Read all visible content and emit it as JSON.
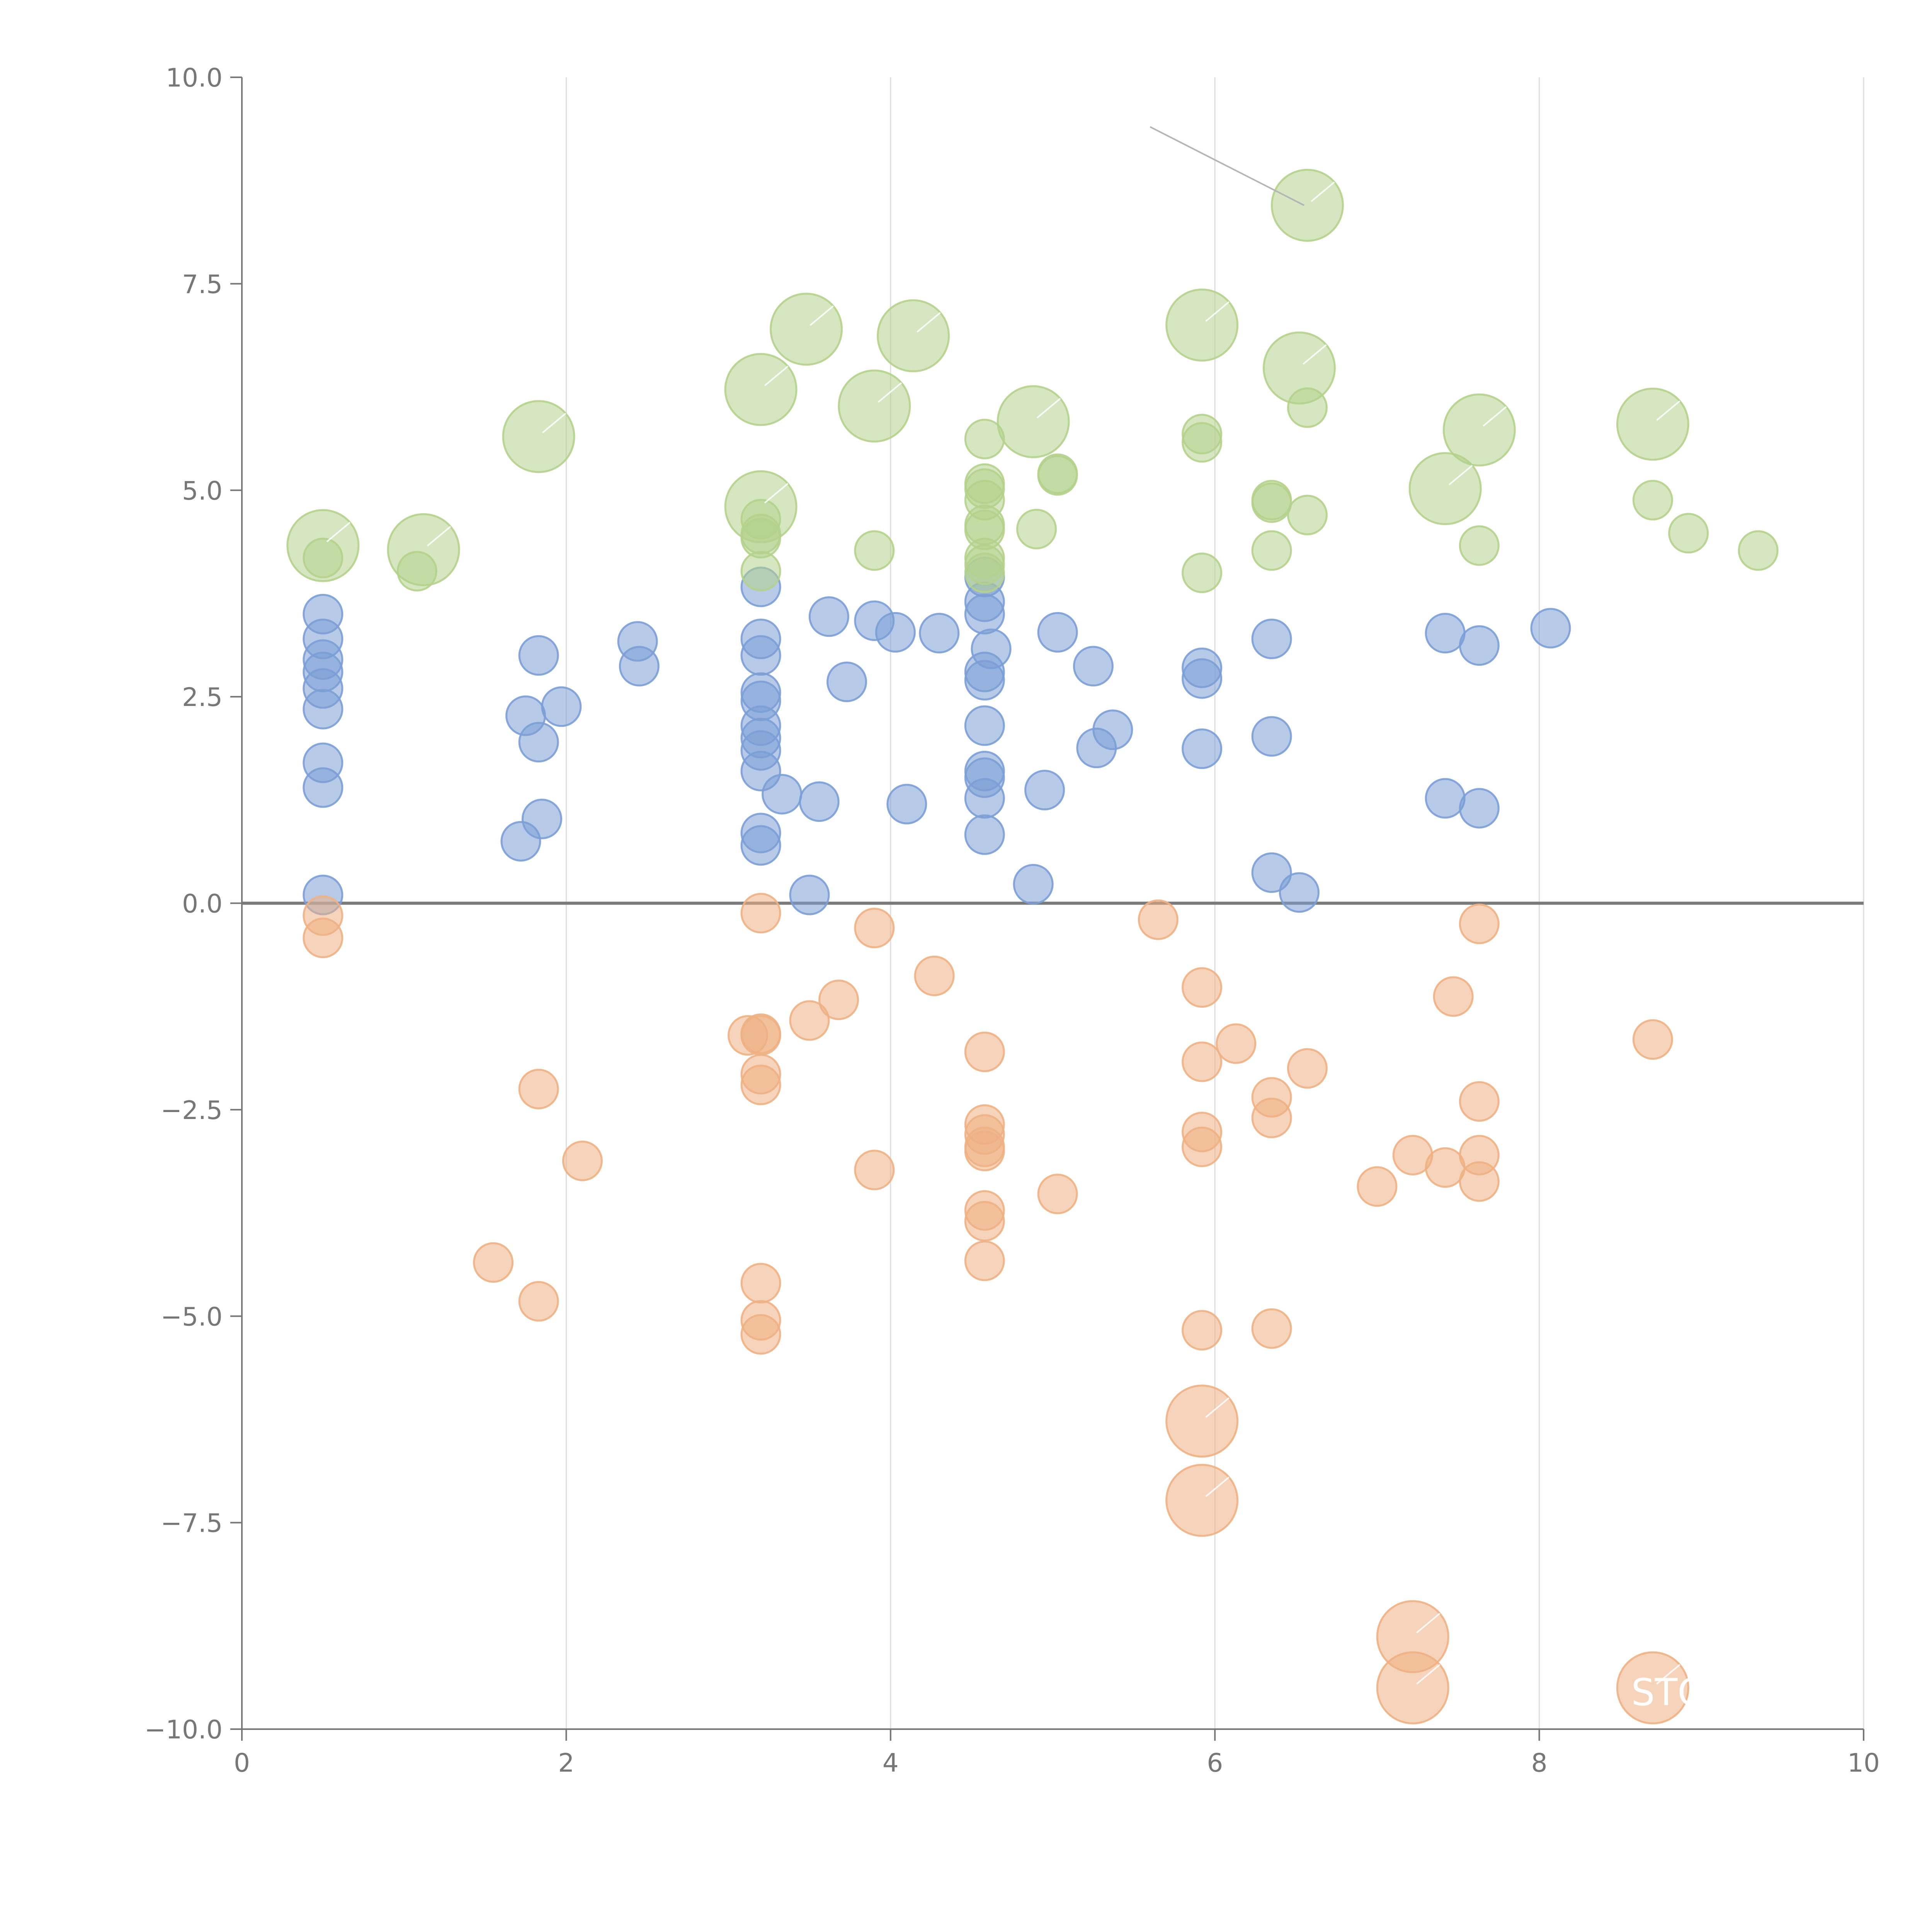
{
  "chart_data": {
    "type": "scatter",
    "title": "",
    "xlabel": "",
    "ylabel": "",
    "xlim": [
      0,
      10
    ],
    "ylim": [
      -10,
      10
    ],
    "x_ticks": [
      0,
      2,
      4,
      6,
      8,
      10
    ],
    "x_tick_labels": [
      "0",
      "2",
      "4",
      "6",
      "8",
      "10"
    ],
    "y_ticks": [
      10,
      7.5,
      5,
      2.5,
      0,
      -2.5,
      -5,
      -7.5,
      -10
    ],
    "y_tick_labels": [
      "10.0",
      "7.5",
      "5.0",
      "2.5",
      "0.0",
      "−2.5",
      "−5.0",
      "−7.5",
      "−10.0"
    ],
    "grid": "vertical",
    "zero_line": true,
    "series": [
      {
        "name": "blue",
        "color": "#7b9fd6",
        "points": [
          [
            0.5,
            3.5,
            1
          ],
          [
            0.5,
            3.2,
            1
          ],
          [
            0.5,
            2.95,
            1
          ],
          [
            0.5,
            2.8,
            1
          ],
          [
            0.5,
            2.6,
            1
          ],
          [
            0.5,
            2.35,
            1
          ],
          [
            0.5,
            1.7,
            1
          ],
          [
            0.5,
            1.4,
            1
          ],
          [
            0.5,
            0.1,
            1
          ],
          [
            1.72,
            0.75,
            1
          ],
          [
            1.75,
            2.27,
            1
          ],
          [
            1.83,
            3.0,
            1
          ],
          [
            1.83,
            1.95,
            1
          ],
          [
            1.85,
            1.02,
            1
          ],
          [
            1.97,
            2.38,
            1
          ],
          [
            2.44,
            3.17,
            1
          ],
          [
            2.45,
            2.87,
            1
          ],
          [
            3.2,
            3.83,
            1
          ],
          [
            3.2,
            3.2,
            1
          ],
          [
            3.2,
            3.0,
            1
          ],
          [
            3.2,
            2.55,
            1
          ],
          [
            3.2,
            2.45,
            1
          ],
          [
            3.2,
            2.15,
            1
          ],
          [
            3.2,
            2.0,
            1
          ],
          [
            3.2,
            1.85,
            1
          ],
          [
            3.2,
            1.6,
            1
          ],
          [
            3.2,
            0.85,
            1
          ],
          [
            3.2,
            0.7,
            1
          ],
          [
            3.33,
            1.32,
            1
          ],
          [
            3.5,
            0.1,
            1
          ],
          [
            3.56,
            1.23,
            1
          ],
          [
            3.62,
            3.47,
            1
          ],
          [
            3.73,
            2.68,
            1
          ],
          [
            3.9,
            3.42,
            1
          ],
          [
            4.03,
            3.28,
            1
          ],
          [
            4.1,
            1.2,
            1
          ],
          [
            4.3,
            3.27,
            1
          ],
          [
            4.58,
            3.95,
            1
          ],
          [
            4.58,
            3.65,
            1
          ],
          [
            4.58,
            3.5,
            1
          ],
          [
            4.58,
            2.8,
            1
          ],
          [
            4.58,
            2.7,
            1
          ],
          [
            4.58,
            2.15,
            1
          ],
          [
            4.58,
            1.6,
            1
          ],
          [
            4.58,
            1.52,
            1
          ],
          [
            4.58,
            1.27,
            1
          ],
          [
            4.58,
            0.83,
            1
          ],
          [
            4.62,
            3.08,
            1
          ],
          [
            4.88,
            0.23,
            1
          ],
          [
            4.95,
            1.37,
            1
          ],
          [
            5.03,
            3.28,
            1
          ],
          [
            5.25,
            2.87,
            1
          ],
          [
            5.27,
            1.88,
            1
          ],
          [
            5.37,
            2.1,
            1
          ],
          [
            5.92,
            2.85,
            1
          ],
          [
            5.92,
            2.72,
            1
          ],
          [
            5.92,
            1.87,
            1
          ],
          [
            6.35,
            3.2,
            1
          ],
          [
            6.35,
            2.02,
            1
          ],
          [
            6.35,
            0.37,
            1
          ],
          [
            6.52,
            0.13,
            1
          ],
          [
            7.42,
            3.27,
            1
          ],
          [
            7.42,
            1.27,
            1
          ],
          [
            7.63,
            3.12,
            1
          ],
          [
            7.63,
            1.15,
            1
          ],
          [
            8.07,
            3.33,
            1
          ]
        ]
      },
      {
        "name": "green",
        "color": "#b5d28c",
        "points": [
          [
            0.5,
            4.33,
            2
          ],
          [
            0.5,
            4.18,
            1
          ],
          [
            1.12,
            4.28,
            2
          ],
          [
            1.08,
            4.02,
            1
          ],
          [
            1.83,
            5.65,
            2
          ],
          [
            3.2,
            6.22,
            2
          ],
          [
            3.2,
            4.8,
            2
          ],
          [
            3.2,
            4.65,
            1
          ],
          [
            3.2,
            4.47,
            1
          ],
          [
            3.2,
            4.42,
            1
          ],
          [
            3.2,
            4.02,
            1
          ],
          [
            3.48,
            6.95,
            2
          ],
          [
            3.9,
            6.02,
            2
          ],
          [
            3.9,
            4.27,
            1
          ],
          [
            4.14,
            6.87,
            2
          ],
          [
            4.58,
            5.62,
            1
          ],
          [
            4.58,
            5.08,
            1
          ],
          [
            4.58,
            5.02,
            1
          ],
          [
            4.58,
            4.88,
            1
          ],
          [
            4.58,
            4.58,
            1
          ],
          [
            4.58,
            4.52,
            1
          ],
          [
            4.58,
            4.18,
            1
          ],
          [
            4.58,
            4.1,
            1
          ],
          [
            4.58,
            4.0,
            1
          ],
          [
            4.88,
            5.83,
            2
          ],
          [
            4.9,
            4.53,
            1
          ],
          [
            5.03,
            5.2,
            1
          ],
          [
            5.03,
            5.18,
            1
          ],
          [
            5.92,
            7.0,
            2
          ],
          [
            5.92,
            5.68,
            1
          ],
          [
            5.92,
            5.58,
            1
          ],
          [
            5.92,
            4.0,
            1
          ],
          [
            6.35,
            4.88,
            1
          ],
          [
            6.35,
            4.85,
            1
          ],
          [
            6.35,
            4.27,
            1
          ],
          [
            6.52,
            6.48,
            2
          ],
          [
            6.57,
            8.45,
            2
          ],
          [
            6.57,
            6.0,
            1
          ],
          [
            6.57,
            4.7,
            1
          ],
          [
            7.42,
            5.02,
            2
          ],
          [
            7.63,
            5.73,
            2
          ],
          [
            7.63,
            4.33,
            1
          ],
          [
            8.7,
            5.8,
            2
          ],
          [
            8.7,
            4.88,
            1
          ],
          [
            8.92,
            4.48,
            1
          ],
          [
            9.35,
            4.27,
            1
          ]
        ]
      },
      {
        "name": "orange",
        "color": "#eeb184",
        "points": [
          [
            0.5,
            -0.15,
            1
          ],
          [
            0.5,
            -0.42,
            1
          ],
          [
            1.55,
            -4.35,
            1
          ],
          [
            1.83,
            -2.25,
            1
          ],
          [
            1.83,
            -4.82,
            1
          ],
          [
            2.1,
            -3.12,
            1
          ],
          [
            3.12,
            -1.6,
            1
          ],
          [
            3.2,
            -0.12,
            1
          ],
          [
            3.2,
            -1.58,
            1
          ],
          [
            3.2,
            -1.6,
            1
          ],
          [
            3.2,
            -2.07,
            1
          ],
          [
            3.2,
            -2.2,
            1
          ],
          [
            3.2,
            -4.6,
            1
          ],
          [
            3.2,
            -5.05,
            1
          ],
          [
            3.2,
            -5.22,
            1
          ],
          [
            3.5,
            -1.42,
            1
          ],
          [
            3.68,
            -1.17,
            1
          ],
          [
            3.9,
            -0.3,
            1
          ],
          [
            3.9,
            -3.23,
            1
          ],
          [
            4.27,
            -0.88,
            1
          ],
          [
            4.58,
            -1.8,
            1
          ],
          [
            4.58,
            -2.68,
            1
          ],
          [
            4.58,
            -2.8,
            1
          ],
          [
            4.58,
            -2.95,
            1
          ],
          [
            4.58,
            -3.0,
            1
          ],
          [
            4.58,
            -3.72,
            1
          ],
          [
            4.58,
            -3.85,
            1
          ],
          [
            4.58,
            -4.33,
            1
          ],
          [
            5.03,
            -3.52,
            1
          ],
          [
            5.65,
            -0.2,
            1
          ],
          [
            5.92,
            -1.02,
            1
          ],
          [
            5.92,
            -1.92,
            1
          ],
          [
            5.92,
            -2.77,
            1
          ],
          [
            5.92,
            -2.95,
            1
          ],
          [
            5.92,
            -5.17,
            1
          ],
          [
            5.92,
            -6.27,
            2
          ],
          [
            5.92,
            -7.23,
            2
          ],
          [
            6.13,
            -1.7,
            1
          ],
          [
            6.35,
            -2.35,
            1
          ],
          [
            6.35,
            -2.6,
            1
          ],
          [
            6.35,
            -5.15,
            1
          ],
          [
            6.57,
            -2.0,
            1
          ],
          [
            7.0,
            -3.43,
            1
          ],
          [
            7.22,
            -3.05,
            1
          ],
          [
            7.22,
            -8.88,
            2
          ],
          [
            7.22,
            -9.5,
            2
          ],
          [
            7.42,
            -3.2,
            1
          ],
          [
            7.47,
            -1.13,
            1
          ],
          [
            7.63,
            -0.25,
            1
          ],
          [
            7.63,
            -2.4,
            1
          ],
          [
            7.63,
            -3.05,
            1
          ],
          [
            7.63,
            -3.37,
            1
          ],
          [
            8.7,
            -1.65,
            1
          ],
          [
            8.7,
            -9.5,
            2
          ]
        ]
      }
    ],
    "visible_labels": [
      {
        "text": "STO",
        "x": 8.8,
        "y": -9.55
      }
    ],
    "callout": {
      "from": [
        5.6,
        9.4
      ],
      "to": [
        6.55,
        8.45
      ]
    }
  }
}
